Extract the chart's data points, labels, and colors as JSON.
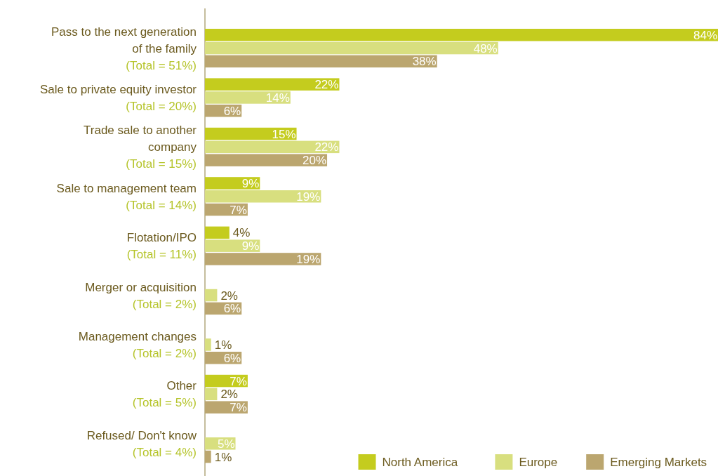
{
  "chart_data": {
    "type": "bar",
    "orientation": "horizontal",
    "legend": "bottom right",
    "categories": [
      "Pass to the next generation\nof the family",
      "Sale to private equity investor",
      "Trade sale to another\ncompany",
      "Sale to management team",
      "Flotation/IPO",
      "Merger or acquisition",
      "Management changes",
      "Other",
      "Refused/ Don't know"
    ],
    "series": [
      {
        "name": "North America",
        "color": "#c4cc1e",
        "values": [
          84,
          22,
          15,
          9,
          4,
          null,
          null,
          7,
          null
        ],
        "value_labels": [
          "84%",
          "22%",
          "15%",
          "9%",
          "4%",
          null,
          null,
          "7%",
          null
        ]
      },
      {
        "name": "Europe",
        "color": "#d8df7f",
        "values": [
          48,
          14,
          22,
          19,
          9,
          2,
          1,
          2,
          5
        ],
        "value_labels": [
          "48%",
          "14%",
          "22%",
          "19%",
          "9%",
          "2%",
          "1%",
          "2%",
          "5%"
        ]
      },
      {
        "name": "Emerging Markets",
        "color": "#bba66f",
        "values": [
          38,
          6,
          20,
          7,
          19,
          6,
          6,
          7,
          1
        ],
        "value_labels": [
          "38%",
          "6%",
          "20%",
          "7%",
          "19%",
          "6%",
          "6%",
          "7%",
          "1%"
        ]
      }
    ],
    "annotations": [
      "(Total = 51%)",
      "(Total = 20%)",
      "(Total = 15%)",
      "(Total = 14%)",
      "(Total = 11%)",
      "(Total = 2%)",
      "(Total = 2%)",
      "(Total = 5%)",
      "(Total = 4%)"
    ]
  }
}
